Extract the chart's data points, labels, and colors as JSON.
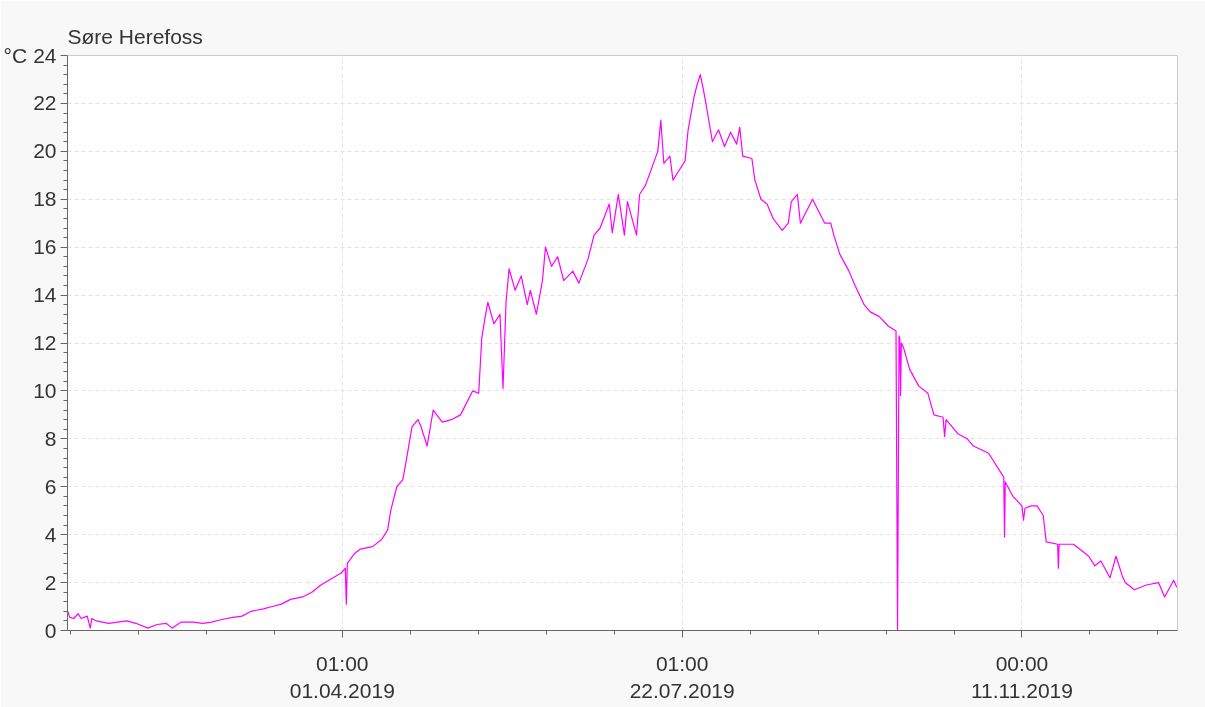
{
  "chart_data": {
    "type": "line",
    "title": "Søre Herefoss",
    "ylabel": "°C",
    "xlim": [
      "2018-12-31T12:00",
      "2020-01-01T06:00"
    ],
    "xticks": [
      {
        "value": "2019-01-01T10:36",
        "label": null
      },
      {
        "value": "2019-01-23T20:12",
        "label": null
      },
      {
        "value": "2019-02-15T05:48",
        "label": null
      },
      {
        "value": "2019-03-09T15:24",
        "label": null
      },
      {
        "value": "2019-04-01T01:00",
        "label": "01:00\n01.04.2019"
      },
      {
        "value": "2019-04-23T10:36",
        "label": null
      },
      {
        "value": "2019-05-15T20:12",
        "label": null
      },
      {
        "value": "2019-06-07T05:48",
        "label": null
      },
      {
        "value": "2019-06-29T15:24",
        "label": null
      },
      {
        "value": "2019-07-22T01:00",
        "label": "01:00\n22.07.2019"
      },
      {
        "value": "2019-08-13T10:36",
        "label": null
      },
      {
        "value": "2019-09-04T20:12",
        "label": null
      },
      {
        "value": "2019-09-27T05:48",
        "label": null
      },
      {
        "value": "2019-10-19T15:24",
        "label": null
      },
      {
        "value": "2019-11-11T00:00",
        "label": "00:00\n11.11.2019"
      },
      {
        "value": "2019-12-03T09:36",
        "label": null
      },
      {
        "value": "2019-12-25T19:12",
        "label": null
      }
    ],
    "ylim": [
      0,
      24
    ],
    "yticks": [
      0,
      {
        "value": 0.4,
        "label": null
      },
      {
        "value": 0.8,
        "label": null
      },
      {
        "value": 1.2,
        "label": null
      },
      {
        "value": 1.6,
        "label": null
      },
      2,
      {
        "value": 2.4,
        "label": null
      },
      {
        "value": 2.8,
        "label": null
      },
      {
        "value": 3.2,
        "label": null
      },
      {
        "value": 3.6,
        "label": null
      },
      4,
      {
        "value": 4.4,
        "label": null
      },
      {
        "value": 4.8,
        "label": null
      },
      {
        "value": 5.2,
        "label": null
      },
      {
        "value": 5.6,
        "label": null
      },
      6,
      {
        "value": 6.4,
        "label": null
      },
      {
        "value": 6.8,
        "label": null
      },
      {
        "value": 7.2,
        "label": null
      },
      {
        "value": 7.6,
        "label": null
      },
      8,
      {
        "value": 8.4,
        "label": null
      },
      {
        "value": 8.8,
        "label": null
      },
      {
        "value": 9.2,
        "label": null
      },
      {
        "value": 9.6,
        "label": null
      },
      10,
      {
        "value": 10.4,
        "label": null
      },
      {
        "value": 10.8,
        "label": null
      },
      {
        "value": 11.2,
        "label": null
      },
      {
        "value": 11.6,
        "label": null
      },
      12,
      {
        "value": 12.4,
        "label": null
      },
      {
        "value": 12.8,
        "label": null
      },
      {
        "value": 13.2,
        "label": null
      },
      {
        "value": 13.6,
        "label": null
      },
      14,
      {
        "value": 14.4,
        "label": null
      },
      {
        "value": 14.8,
        "label": null
      },
      {
        "value": 15.2,
        "label": null
      },
      {
        "value": 15.6,
        "label": null
      },
      16,
      {
        "value": 16.4,
        "label": null
      },
      {
        "value": 16.8,
        "label": null
      },
      {
        "value": 17.2,
        "label": null
      },
      {
        "value": 17.6,
        "label": null
      },
      18,
      {
        "value": 18.4,
        "label": null
      },
      {
        "value": 18.8,
        "label": null
      },
      {
        "value": 19.2,
        "label": null
      },
      {
        "value": 19.6,
        "label": null
      },
      20,
      {
        "value": 20.4,
        "label": null
      },
      {
        "value": 20.8,
        "label": null
      },
      {
        "value": 21.2,
        "label": null
      },
      {
        "value": 21.6,
        "label": null
      },
      22,
      {
        "value": 22.4,
        "label": null
      },
      {
        "value": 22.8,
        "label": null
      },
      {
        "value": 23.2,
        "label": null
      },
      {
        "value": 23.6,
        "label": null
      },
      24
    ],
    "grid": true,
    "x": [
      "2018-12-31T14:00",
      "2019-01-01T06:00",
      "2019-01-02T13:00",
      "2019-01-04",
      "2019-01-05",
      "2019-01-07",
      "2019-01-08",
      "2019-01-08T12:00",
      "2019-01-10",
      "2019-01-14",
      "2019-01-17",
      "2019-01-20",
      "2019-01-23",
      "2019-01-27",
      "2019-01-30",
      "2019-02-02",
      "2019-02-04",
      "2019-02-07",
      "2019-02-11",
      "2019-02-14",
      "2019-02-17",
      "2019-02-20",
      "2019-02-24",
      "2019-02-27",
      "2019-03-02",
      "2019-03-06",
      "2019-03-09",
      "2019-03-12",
      "2019-03-15",
      "2019-03-19",
      "2019-03-22",
      "2019-03-25",
      "2019-03-29",
      "2019-03-31T17:00",
      "2019-04-02T01:00",
      "2019-04-02T09:00",
      "2019-04-02T17:00",
      "2019-04-05",
      "2019-04-07",
      "2019-04-11",
      "2019-04-14",
      "2019-04-16",
      "2019-04-17",
      "2019-04-19",
      "2019-04-21",
      "2019-04-22",
      "2019-04-24",
      "2019-04-26",
      "2019-04-27",
      "2019-04-29",
      "2019-05-01",
      "2019-05-04",
      "2019-05-07",
      "2019-05-10",
      "2019-05-12",
      "2019-05-14",
      "2019-05-16",
      "2019-05-17",
      "2019-05-18",
      "2019-05-19",
      "2019-05-21",
      "2019-05-23",
      "2019-05-24",
      "2019-05-25",
      "2019-05-26",
      "2019-05-28",
      "2019-05-30",
      "2019-06-01",
      "2019-06-02",
      "2019-06-04",
      "2019-06-06",
      "2019-06-07",
      "2019-06-09",
      "2019-06-11",
      "2019-06-13",
      "2019-06-16",
      "2019-06-18",
      "2019-06-21",
      "2019-06-23",
      "2019-06-25",
      "2019-06-28",
      "2019-06-29",
      "2019-07-01",
      "2019-07-03",
      "2019-07-04",
      "2019-07-07",
      "2019-07-08",
      "2019-07-10",
      "2019-07-12",
      "2019-07-14",
      "2019-07-15",
      "2019-07-16",
      "2019-07-18",
      "2019-07-19",
      "2019-07-21",
      "2019-07-23",
      "2019-07-24",
      "2019-07-26",
      "2019-07-27",
      "2019-07-28",
      "2019-07-29",
      "2019-07-30",
      "2019-08-01",
      "2019-08-03",
      "2019-08-05",
      "2019-08-07",
      "2019-08-09",
      "2019-08-10",
      "2019-08-11",
      "2019-08-14",
      "2019-08-15",
      "2019-08-17",
      "2019-08-19",
      "2019-08-21",
      "2019-08-24",
      "2019-08-26",
      "2019-08-27",
      "2019-08-29",
      "2019-08-30",
      "2019-09-01",
      "2019-09-03",
      "2019-09-05",
      "2019-09-07",
      "2019-09-09",
      "2019-09-10",
      "2019-09-12",
      "2019-09-15",
      "2019-09-17",
      "2019-09-20",
      "2019-09-22",
      "2019-09-25",
      "2019-09-28",
      "2019-09-30T12:00",
      "2019-10-01T00:00",
      "2019-10-01T12:00",
      "2019-10-01T18:00",
      "2019-10-02T00:00",
      "2019-10-02T06:00",
      "2019-10-03",
      "2019-10-05",
      "2019-10-08",
      "2019-10-11",
      "2019-10-13",
      "2019-10-16T00:00",
      "2019-10-16T12:00",
      "2019-10-17T00:00",
      "2019-10-21",
      "2019-10-24",
      "2019-10-26",
      "2019-10-31",
      "2019-11-04",
      "2019-11-05T00:00",
      "2019-11-05T06:00",
      "2019-11-05T12:00",
      "2019-11-08",
      "2019-11-11T00:00",
      "2019-11-11T12:00",
      "2019-11-12",
      "2019-11-14",
      "2019-11-16",
      "2019-11-18",
      "2019-11-19",
      "2019-11-22T18:00",
      "2019-11-23T00:00",
      "2019-11-23T06:00",
      "2019-11-28",
      "2019-11-30",
      "2019-12-03",
      "2019-12-05",
      "2019-12-07",
      "2019-12-10",
      "2019-12-12",
      "2019-12-14",
      "2019-12-15",
      "2019-12-18",
      "2019-12-22",
      "2019-12-26",
      "2019-12-28",
      "2019-12-31",
      "2020-01-01T00:00"
    ],
    "series": [
      {
        "color": "#ff00ff",
        "values": [
          0.8,
          0.55,
          0.5,
          0.7,
          0.5,
          0.6,
          0.1,
          0.5,
          0.4,
          0.3,
          0.35,
          0.4,
          0.3,
          0.1,
          0.25,
          0.3,
          0.1,
          0.35,
          0.35,
          0.3,
          0.35,
          0.45,
          0.55,
          0.6,
          0.8,
          0.9,
          1.0,
          1.1,
          1.3,
          1.4,
          1.6,
          1.9,
          2.2,
          2.4,
          2.6,
          1.1,
          2.8,
          3.2,
          3.4,
          3.5,
          3.8,
          4.2,
          5.0,
          6.0,
          6.3,
          7.0,
          8.5,
          8.8,
          8.5,
          7.7,
          9.2,
          8.7,
          8.8,
          9.0,
          9.5,
          10.0,
          9.9,
          12.2,
          13.0,
          13.7,
          12.8,
          13.2,
          10.1,
          13.7,
          15.1,
          14.2,
          14.8,
          13.6,
          14.2,
          13.2,
          14.6,
          16.0,
          15.2,
          15.6,
          14.6,
          15.0,
          14.5,
          15.5,
          16.5,
          16.8,
          17.8,
          16.6,
          18.2,
          16.5,
          17.9,
          16.5,
          18.2,
          18.6,
          19.3,
          20.0,
          21.3,
          19.5,
          19.8,
          18.8,
          19.2,
          19.6,
          20.9,
          22.3,
          22.8,
          23.2,
          22.6,
          21.9,
          20.4,
          20.9,
          20.2,
          20.8,
          20.3,
          21.0,
          19.8,
          19.7,
          18.8,
          18.0,
          17.8,
          17.2,
          16.7,
          17.0,
          17.9,
          18.2,
          17.0,
          17.5,
          18.0,
          17.5,
          17.0,
          17.0,
          16.5,
          15.7,
          15.0,
          14.4,
          13.6,
          13.3,
          13.1,
          12.7,
          12.5,
          0.0,
          12.3,
          12.2,
          9.8,
          12.0,
          11.8,
          10.9,
          10.2,
          9.9,
          9.0,
          8.9,
          8.1,
          8.8,
          8.2,
          8.0,
          7.7,
          7.4,
          6.6,
          6.4,
          3.9,
          6.2,
          5.6,
          5.2,
          4.6,
          5.1,
          5.2,
          5.2,
          4.8,
          3.7,
          3.6,
          2.6,
          3.6,
          3.6,
          3.4,
          3.1,
          2.7,
          2.9,
          2.2,
          3.1,
          2.3,
          2.0,
          1.7,
          1.9,
          2.0,
          1.4,
          2.1,
          1.8
        ]
      }
    ]
  }
}
